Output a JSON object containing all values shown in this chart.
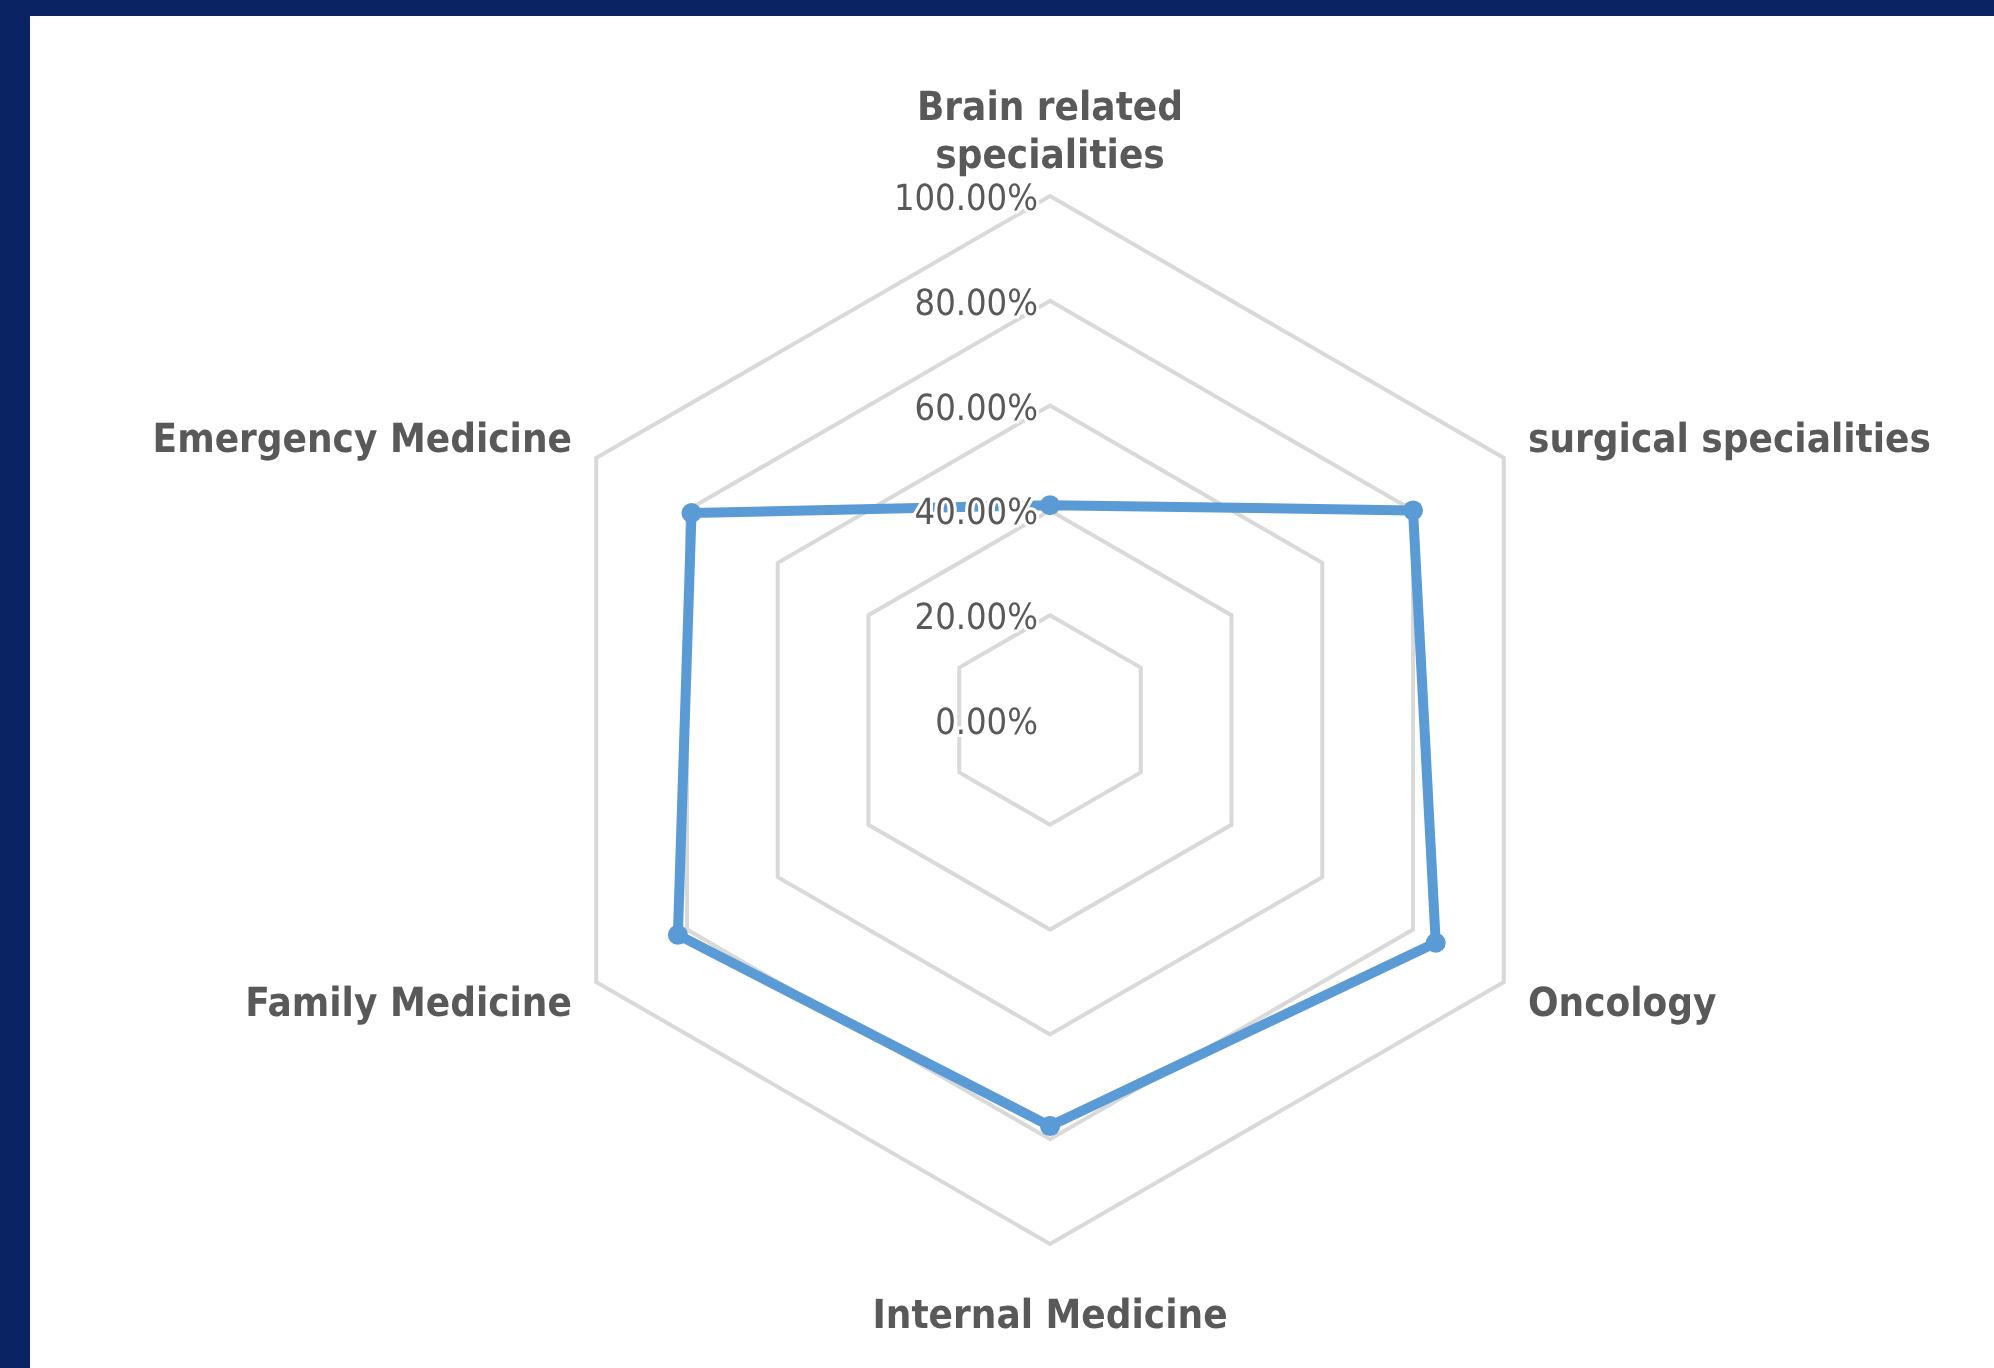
{
  "chart_data": {
    "type": "radar",
    "categories": [
      "Brain related specialities",
      "surgical specialities",
      "Oncology",
      "Internal Medicine",
      "Family Medicine",
      "Emergency Medicine"
    ],
    "series": [
      {
        "color": "#5b9bd5",
        "values": [
          0.41,
          0.8,
          0.85,
          0.775,
          0.82,
          0.79
        ]
      }
    ],
    "ylim": [
      0,
      1
    ],
    "yticks": [
      {
        "value": 0,
        "label": "0.00%"
      },
      {
        "value": 0.2,
        "label": "20.00%"
      },
      {
        "value": 0.4,
        "label": "40.00%"
      },
      {
        "value": 0.6,
        "label": "60.00%"
      },
      {
        "value": 0.8,
        "label": "80.00%"
      },
      {
        "value": 1,
        "label": "100.00%"
      }
    ],
    "grid": true,
    "marker": "circle"
  }
}
